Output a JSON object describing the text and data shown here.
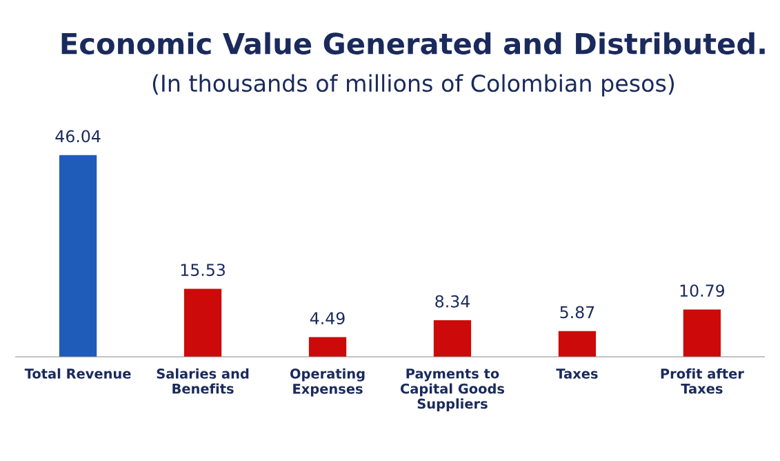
{
  "chart_data": {
    "type": "bar",
    "title": "Economic Value Generated and Distributed.",
    "subtitle": "(In thousands of millions of Colombian pesos)",
    "categories": [
      "Total Revenue",
      "Salaries and\nBenefits",
      "Operating\nExpenses",
      "Payments to\nCapital Goods\nSuppliers",
      "Taxes",
      "Profit after\nTaxes"
    ],
    "values": [
      46.04,
      15.53,
      4.49,
      8.34,
      5.87,
      10.79
    ],
    "colors": [
      "#1f5bb8",
      "#cc0a0a",
      "#cc0a0a",
      "#cc0a0a",
      "#cc0a0a",
      "#cc0a0a"
    ],
    "data_labels": true,
    "grid": false,
    "legend": false
  }
}
